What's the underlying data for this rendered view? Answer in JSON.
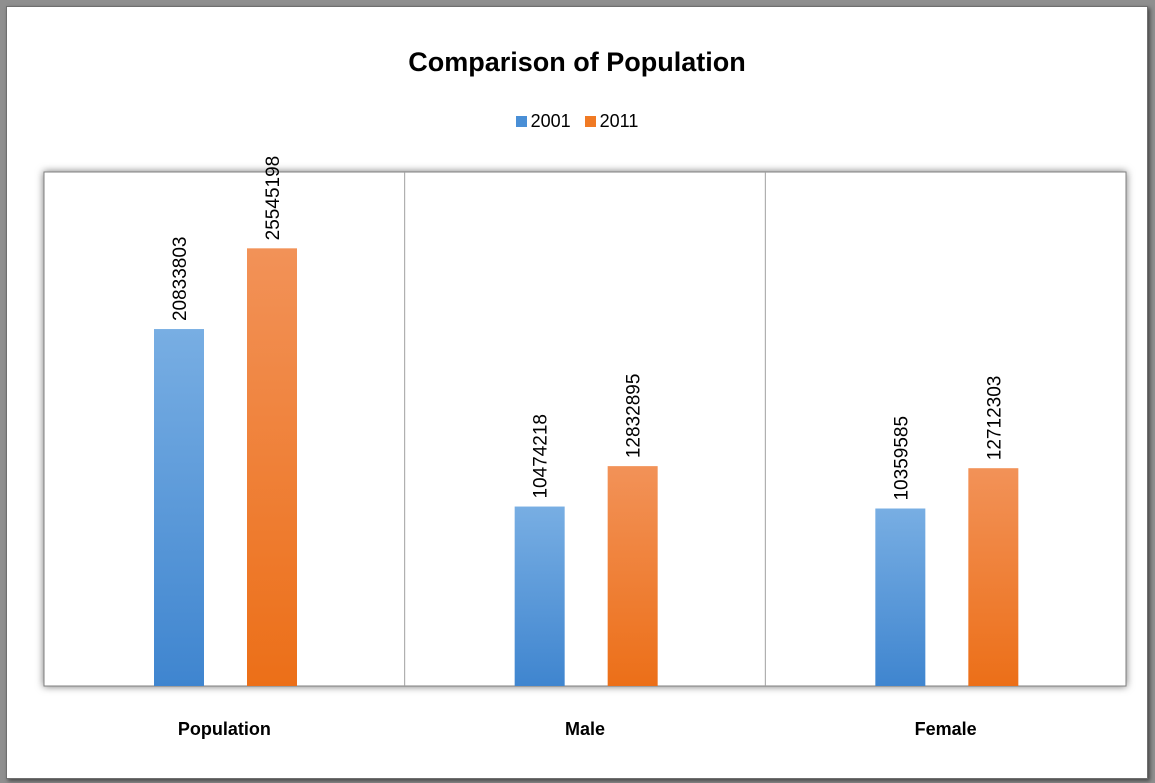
{
  "chart_data": {
    "type": "bar",
    "title": "Comparison of Population",
    "categories": [
      "Population",
      "Male",
      "Female"
    ],
    "series": [
      {
        "name": "2001",
        "color": "#4a8fd6",
        "values": [
          20833803,
          10474218,
          10359585
        ]
      },
      {
        "name": "2011",
        "color": "#f07a24",
        "values": [
          25545198,
          12832895,
          12712303
        ]
      }
    ],
    "data_labels": [
      [
        "20833803",
        "10474218",
        "10359585"
      ],
      [
        "25545198",
        "12832895",
        "12712303"
      ]
    ],
    "ylim": [
      0,
      30000000
    ],
    "legend": "top-center",
    "grid": false,
    "xlabel": "",
    "ylabel": ""
  }
}
